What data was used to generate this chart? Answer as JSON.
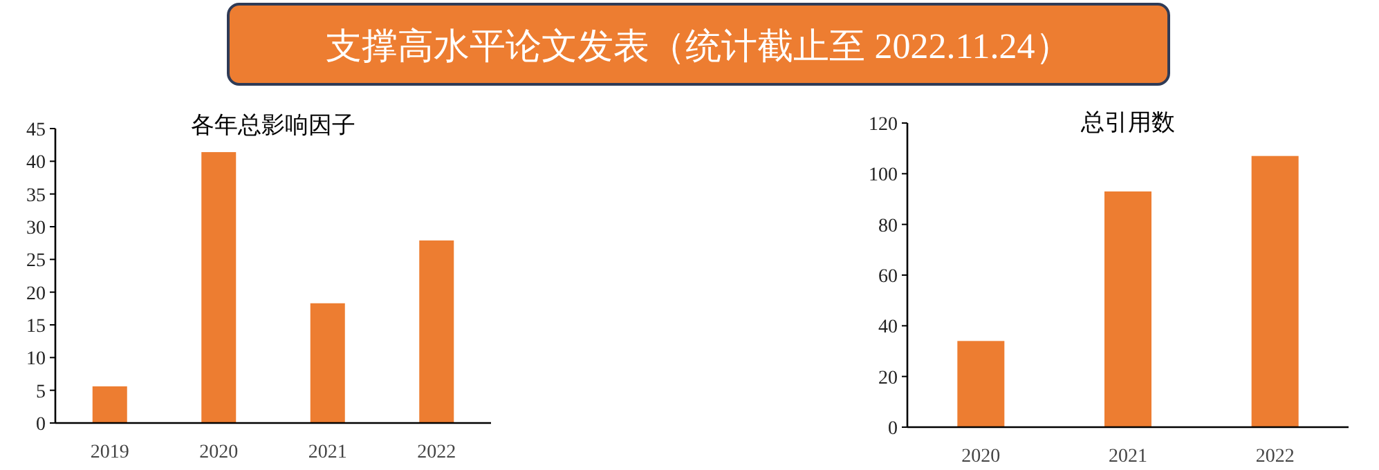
{
  "chart_data": [
    {
      "type": "bar",
      "title": "各年总影响因子",
      "annotations": [
        "支撑高水平论文发表（统计截止至 2022.11.24）"
      ],
      "categories": [
        "2019",
        "2020",
        "2021",
        "2022"
      ],
      "values": [
        5.6,
        41.4,
        18.3,
        27.9
      ],
      "color": "#ed7d31",
      "ylim": [
        0,
        45
      ],
      "yticks": [
        0,
        5,
        10,
        15,
        20,
        25,
        30,
        35,
        40,
        45
      ],
      "grid": false
    },
    {
      "type": "bar",
      "title": "总引用数",
      "categories": [
        "2020",
        "2021",
        "2022"
      ],
      "values": [
        34,
        93,
        107
      ],
      "color": "#ed7d31",
      "ylim": [
        0,
        120
      ],
      "yticks": [
        0,
        20,
        40,
        60,
        80,
        100,
        120
      ],
      "grid": false
    }
  ]
}
